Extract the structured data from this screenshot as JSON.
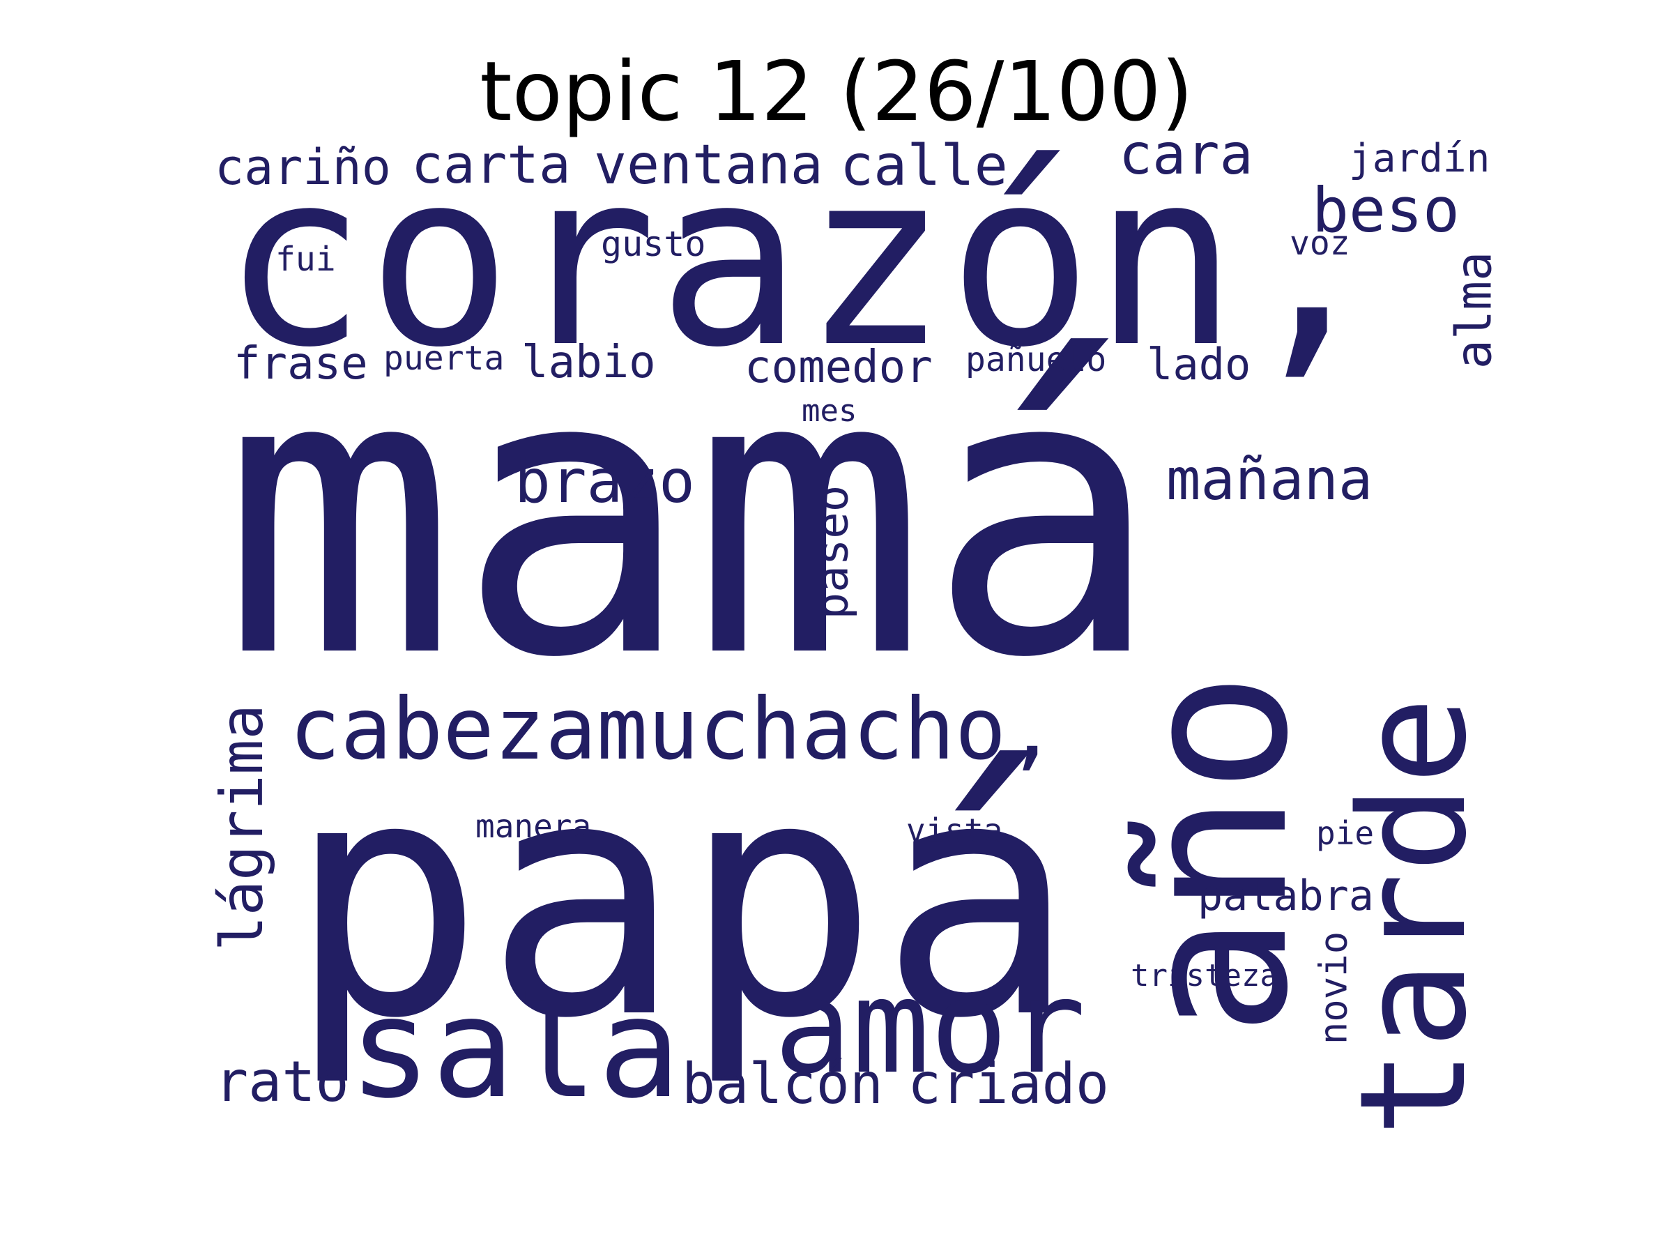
{
  "title": "topic 12 (26/100)",
  "word_color": "#221e63",
  "words": [
    {
      "text": "mamá",
      "weight": 1.0
    },
    {
      "text": "papá",
      "weight": 0.85
    },
    {
      "text": "corazón,",
      "weight": 0.62
    },
    {
      "text": "año",
      "weight": 0.52
    },
    {
      "text": "tarde",
      "weight": 0.38
    },
    {
      "text": "sala",
      "weight": 0.36
    },
    {
      "text": "amor",
      "weight": 0.34
    },
    {
      "text": "cabezamuchacho,",
      "weight": 0.22
    },
    {
      "text": "brazo",
      "weight": 0.16
    },
    {
      "text": "mañana",
      "weight": 0.15
    },
    {
      "text": "beso",
      "weight": 0.16
    },
    {
      "text": "lágrima",
      "weight": 0.15
    },
    {
      "text": "criado",
      "weight": 0.15
    },
    {
      "text": "balcón",
      "weight": 0.15
    },
    {
      "text": "rato",
      "weight": 0.15
    },
    {
      "text": "calle",
      "weight": 0.15
    },
    {
      "text": "ventana",
      "weight": 0.14
    },
    {
      "text": "cariño",
      "weight": 0.14
    },
    {
      "text": "carta",
      "weight": 0.14
    },
    {
      "text": "cara",
      "weight": 0.14
    },
    {
      "text": "alma",
      "weight": 0.13
    },
    {
      "text": "paseo",
      "weight": 0.12
    },
    {
      "text": "comedor",
      "weight": 0.12
    },
    {
      "text": "palabra",
      "weight": 0.11
    },
    {
      "text": "labio",
      "weight": 0.12
    },
    {
      "text": "frase",
      "weight": 0.12
    },
    {
      "text": "lado",
      "weight": 0.12
    },
    {
      "text": "novio",
      "weight": 0.1
    },
    {
      "text": "jardín",
      "weight": 0.1
    },
    {
      "text": "gusto",
      "weight": 0.09
    },
    {
      "text": "voz",
      "weight": 0.09
    },
    {
      "text": "fui",
      "weight": 0.09
    },
    {
      "text": "puerta",
      "weight": 0.09
    },
    {
      "text": "pañuelo",
      "weight": 0.09
    },
    {
      "text": "mes",
      "weight": 0.08
    },
    {
      "text": "manera",
      "weight": 0.09
    },
    {
      "text": "vista",
      "weight": 0.09
    },
    {
      "text": "pie",
      "weight": 0.09
    },
    {
      "text": "tristeza",
      "weight": 0.08
    }
  ]
}
